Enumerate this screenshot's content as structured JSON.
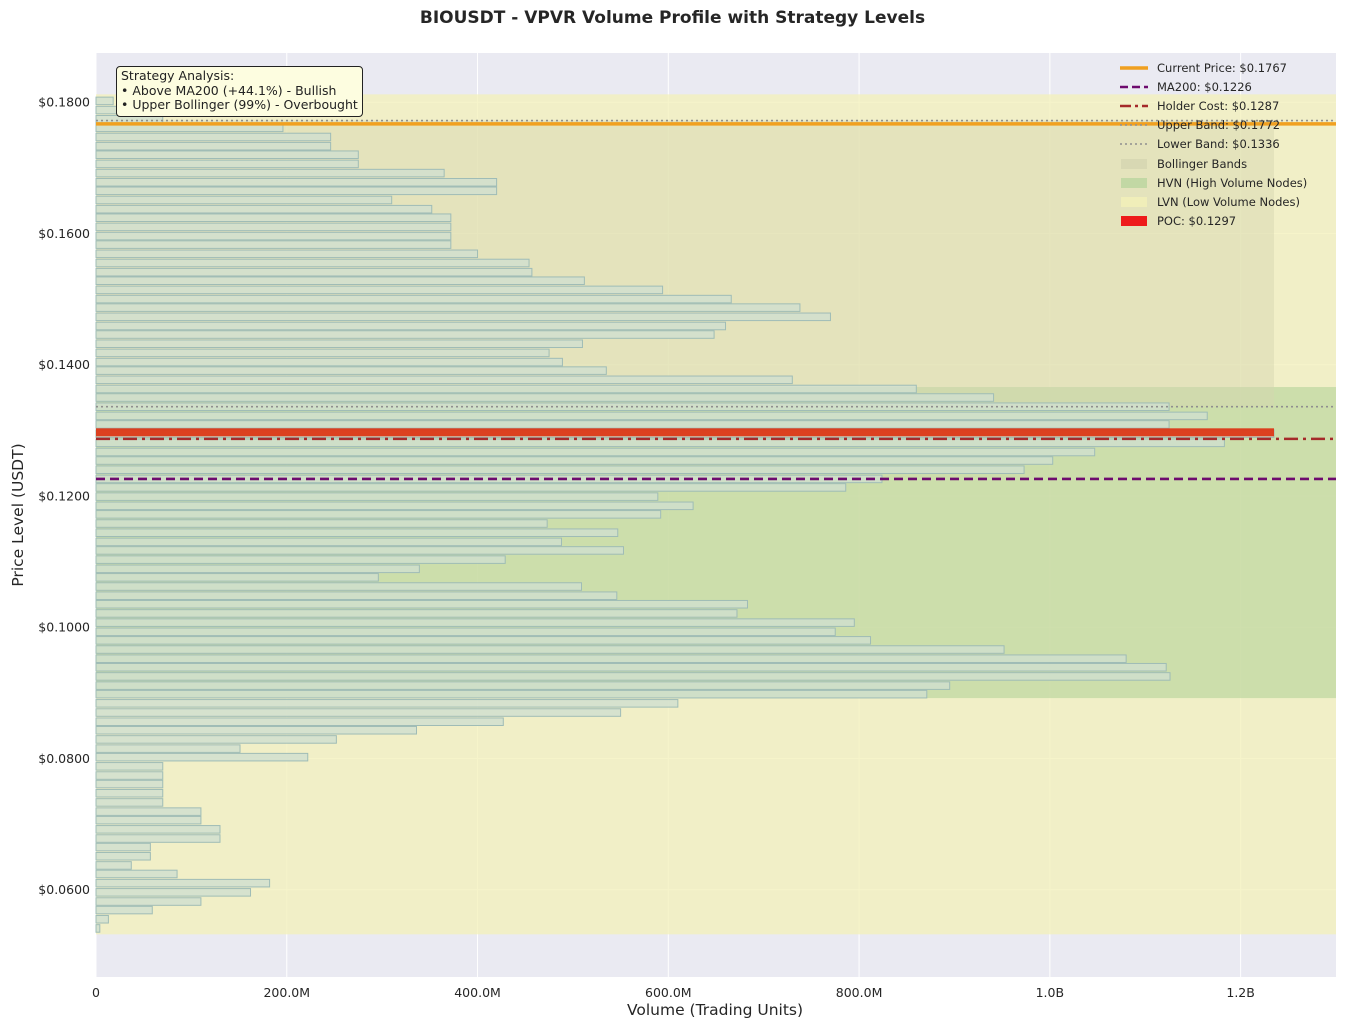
{
  "title": "BIOUSDT - VPVR Volume Profile with Strategy Levels",
  "chart_data": {
    "type": "bar",
    "orientation": "horizontal",
    "title": "BIOUSDT - VPVR Volume Profile with Strategy Levels",
    "xlabel": "Volume (Trading Units)",
    "ylabel": "Price Level (USDT)",
    "xlim": [
      0,
      1300000000
    ],
    "ylim": [
      0.0467,
      0.1875
    ],
    "x_ticks": [
      {
        "value": 0,
        "label": "0"
      },
      {
        "value": 200000000,
        "label": "200.0M"
      },
      {
        "value": 400000000,
        "label": "400.0M"
      },
      {
        "value": 600000000,
        "label": "600.0M"
      },
      {
        "value": 800000000,
        "label": "800.0M"
      },
      {
        "value": 1000000000,
        "label": "1.0B"
      },
      {
        "value": 1200000000,
        "label": "1.2B"
      }
    ],
    "y_ticks": [
      {
        "value": 0.06,
        "label": "$0.0600"
      },
      {
        "value": 0.08,
        "label": "$0.0800"
      },
      {
        "value": 0.1,
        "label": "$0.1000"
      },
      {
        "value": 0.12,
        "label": "$0.1200"
      },
      {
        "value": 0.14,
        "label": "$0.1400"
      },
      {
        "value": 0.16,
        "label": "$0.1600"
      },
      {
        "value": 0.18,
        "label": "$0.1800"
      }
    ],
    "grid": true,
    "bin_width": 0.00137,
    "profile": {
      "price_levels": [
        0.0541,
        0.0555,
        0.0569,
        0.0582,
        0.0596,
        0.061,
        0.0624,
        0.0637,
        0.0651,
        0.0665,
        0.0678,
        0.0692,
        0.0706,
        0.0719,
        0.0733,
        0.0747,
        0.0761,
        0.0774,
        0.0788,
        0.0802,
        0.0815,
        0.0829,
        0.0843,
        0.0856,
        0.087,
        0.0884,
        0.0898,
        0.0911,
        0.0925,
        0.0939,
        0.0952,
        0.0966,
        0.098,
        0.0993,
        0.1007,
        0.1021,
        0.1035,
        0.1048,
        0.1062,
        0.1076,
        0.1089,
        0.1103,
        0.1117,
        0.113,
        0.1144,
        0.1158,
        0.1172,
        0.1185,
        0.1199,
        0.1213,
        0.1226,
        0.124,
        0.1254,
        0.1267,
        0.1281,
        0.1295,
        0.1309,
        0.1322,
        0.1336,
        0.135,
        0.1363,
        0.1377,
        0.1391,
        0.1404,
        0.1418,
        0.1432,
        0.1446,
        0.1459,
        0.1473,
        0.1487,
        0.15,
        0.1514,
        0.1528,
        0.1541,
        0.1555,
        0.1569,
        0.1583,
        0.1596,
        0.161,
        0.1624,
        0.1637,
        0.1651,
        0.1665,
        0.1678,
        0.1692,
        0.1706,
        0.172,
        0.1733,
        0.1747,
        0.1761,
        0.1774,
        0.1788,
        0.1802
      ],
      "volumes": [
        4000000,
        13000000,
        59000000,
        110000000,
        162000000,
        182000000,
        85000000,
        37000000,
        57000000,
        57000000,
        130000000,
        130000000,
        110000000,
        110000000,
        70000000,
        70000000,
        70000000,
        70000000,
        70000000,
        222000000,
        151000000,
        252000000,
        336000000,
        427000000,
        550000000,
        610000000,
        871000000,
        895000000,
        1126000000,
        1122000000,
        1080000000,
        952000000,
        812000000,
        775000000,
        795000000,
        672000000,
        683000000,
        546000000,
        509000000,
        296000000,
        339000000,
        429000000,
        553000000,
        488000000,
        547000000,
        473000000,
        592000000,
        626000000,
        589000000,
        786000000,
        824000000,
        973000000,
        1003000000,
        1047000000,
        1183000000,
        1235000000,
        1125000000,
        1165000000,
        1125000000,
        941000000,
        860000000,
        730000000,
        535000000,
        489000000,
        475000000,
        510000000,
        648000000,
        660000000,
        770000000,
        738000000,
        666000000,
        594000000,
        512000000,
        457000000,
        454000000,
        400000000,
        372000000,
        372000000,
        372000000,
        372000000,
        352000000,
        310000000,
        420000000,
        420000000,
        365000000,
        275000000,
        275000000,
        246000000,
        246000000,
        196000000,
        70000000,
        30000000,
        18000000
      ]
    },
    "levels": {
      "current_price": 0.1767,
      "ma200": 0.1226,
      "holder_cost": 0.1287,
      "upper_band": 0.1772,
      "lower_band": 0.1336,
      "poc": 0.1297
    },
    "zones": {
      "bollinger": [
        0.1336,
        0.1772
      ],
      "hvn": [
        0.0892,
        0.1366
      ],
      "lvn": [
        0.0532,
        0.1812
      ]
    },
    "legend_position": "upper-right",
    "legend": [
      {
        "label": "Current Price: $0.1767",
        "style": "solid-thick",
        "color": "#f0a020"
      },
      {
        "label": "MA200: $0.1226",
        "style": "dashed",
        "color": "#6e0b6e"
      },
      {
        "label": "Holder Cost: $0.1287",
        "style": "dashdot",
        "color": "#a52a2a"
      },
      {
        "label": "Upper Band: $0.1772",
        "style": "dotted",
        "color": "#8f8f8f"
      },
      {
        "label": "Lower Band: $0.1336",
        "style": "dotted",
        "color": "#8f8f8f"
      },
      {
        "label": "Bollinger Bands",
        "style": "patch",
        "color": "#d4d4b0"
      },
      {
        "label": "HVN (High Volume Nodes)",
        "style": "patch",
        "color": "#b9d49d"
      },
      {
        "label": "LVN (Low Volume Nodes)",
        "style": "patch",
        "color": "#f3f0b8"
      },
      {
        "label": "POC: $0.1297",
        "style": "patch",
        "color": "#ee1b1b"
      }
    ],
    "annotation": {
      "heading": "Strategy Analysis:",
      "lines": [
        "• Above MA200 (+44.1%) - Bullish",
        "• Upper Bollinger (99%) - Overbought"
      ]
    }
  },
  "colors": {
    "plot_bg": "#eaeaf2",
    "bar_fill": "#cfdfcf",
    "bar_edge": "#9fbcb6",
    "current_price": "#f0a020",
    "ma200": "#6e0b6e",
    "holder_cost": "#a52a2a",
    "band_line": "#8f8f8f",
    "bollinger_fill": "#d4d4b0",
    "hvn_fill": "#b9d49d",
    "lvn_fill": "#f3f0b8",
    "poc": "#dd3311"
  }
}
